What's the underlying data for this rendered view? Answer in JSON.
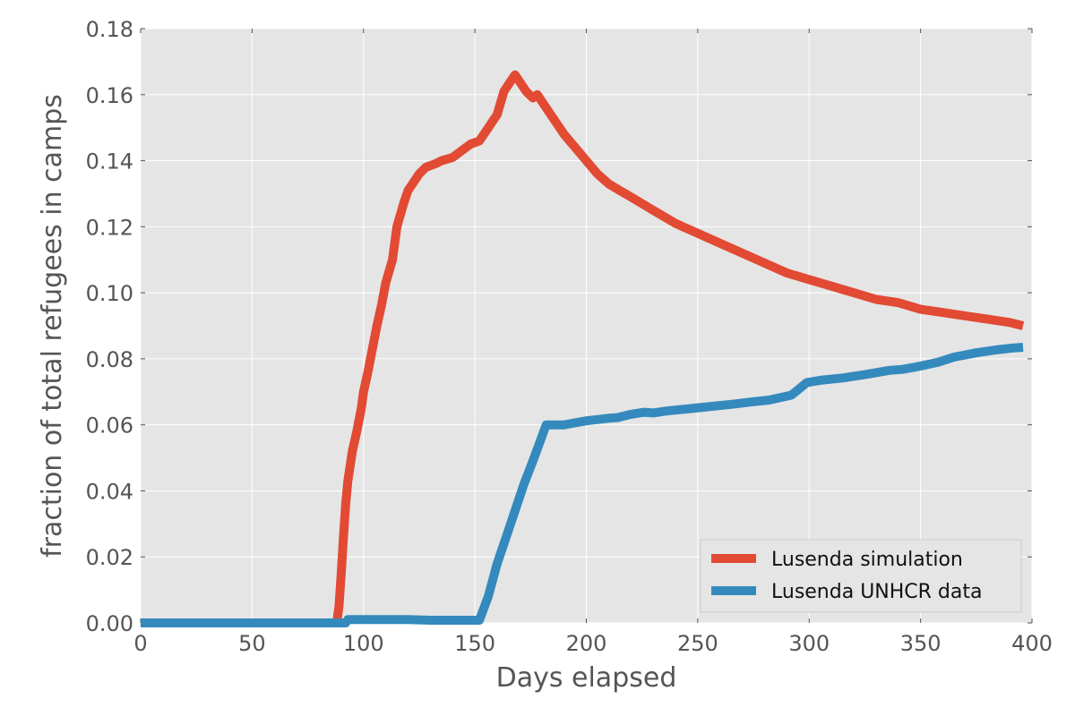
{
  "chart_data": {
    "type": "line",
    "title": "",
    "xlabel": "Days elapsed",
    "ylabel": "fraction of total refugees in camps",
    "xlim": [
      0,
      400
    ],
    "ylim": [
      0,
      0.18
    ],
    "x_ticks": [
      0,
      50,
      100,
      150,
      200,
      250,
      300,
      350,
      400
    ],
    "x_tick_labels": [
      "0",
      "50",
      "100",
      "150",
      "200",
      "250",
      "300",
      "350",
      "400"
    ],
    "y_ticks": [
      0,
      0.02,
      0.04,
      0.06,
      0.08,
      0.1,
      0.12,
      0.14,
      0.16,
      0.18
    ],
    "y_tick_labels": [
      "0.00",
      "0.02",
      "0.04",
      "0.06",
      "0.08",
      "0.10",
      "0.12",
      "0.14",
      "0.16",
      "0.18"
    ],
    "grid": true,
    "legend_position": "bottom-right",
    "background": "#e5e5e5",
    "series": [
      {
        "name": "Lusenda simulation",
        "color": "#e24a33",
        "points": [
          [
            0,
            0
          ],
          [
            50,
            0
          ],
          [
            88,
            0
          ],
          [
            89,
            0.005
          ],
          [
            90,
            0.015
          ],
          [
            91,
            0.026
          ],
          [
            92,
            0.036
          ],
          [
            93,
            0.043
          ],
          [
            95,
            0.052
          ],
          [
            97,
            0.058
          ],
          [
            99,
            0.065
          ],
          [
            100,
            0.07
          ],
          [
            102,
            0.076
          ],
          [
            104,
            0.083
          ],
          [
            106,
            0.09
          ],
          [
            108,
            0.096
          ],
          [
            110,
            0.103
          ],
          [
            113,
            0.11
          ],
          [
            115,
            0.12
          ],
          [
            118,
            0.127
          ],
          [
            120,
            0.131
          ],
          [
            123,
            0.134
          ],
          [
            125,
            0.136
          ],
          [
            128,
            0.138
          ],
          [
            132,
            0.139
          ],
          [
            135,
            0.14
          ],
          [
            140,
            0.141
          ],
          [
            144,
            0.143
          ],
          [
            148,
            0.145
          ],
          [
            152,
            0.146
          ],
          [
            155,
            0.149
          ],
          [
            160,
            0.154
          ],
          [
            163,
            0.161
          ],
          [
            166,
            0.164
          ],
          [
            168,
            0.166
          ],
          [
            170,
            0.164
          ],
          [
            173,
            0.161
          ],
          [
            176,
            0.159
          ],
          [
            178,
            0.16
          ],
          [
            182,
            0.156
          ],
          [
            187,
            0.151
          ],
          [
            190,
            0.148
          ],
          [
            195,
            0.144
          ],
          [
            200,
            0.14
          ],
          [
            205,
            0.136
          ],
          [
            210,
            0.133
          ],
          [
            215,
            0.131
          ],
          [
            220,
            0.129
          ],
          [
            225,
            0.127
          ],
          [
            230,
            0.125
          ],
          [
            240,
            0.121
          ],
          [
            250,
            0.118
          ],
          [
            260,
            0.115
          ],
          [
            270,
            0.112
          ],
          [
            280,
            0.109
          ],
          [
            290,
            0.106
          ],
          [
            300,
            0.104
          ],
          [
            310,
            0.102
          ],
          [
            320,
            0.1
          ],
          [
            330,
            0.098
          ],
          [
            340,
            0.097
          ],
          [
            350,
            0.095
          ],
          [
            360,
            0.094
          ],
          [
            370,
            0.093
          ],
          [
            380,
            0.092
          ],
          [
            390,
            0.091
          ],
          [
            396,
            0.09
          ]
        ]
      },
      {
        "name": "Lusenda UNHCR data",
        "color": "#348abd",
        "points": [
          [
            0,
            0
          ],
          [
            50,
            0
          ],
          [
            92,
            0
          ],
          [
            93,
            0.001
          ],
          [
            100,
            0.001
          ],
          [
            110,
            0.001
          ],
          [
            120,
            0.001
          ],
          [
            130,
            0.0008
          ],
          [
            140,
            0.0008
          ],
          [
            152,
            0.0008
          ],
          [
            156,
            0.008
          ],
          [
            160,
            0.018
          ],
          [
            164,
            0.026
          ],
          [
            168,
            0.034
          ],
          [
            172,
            0.042
          ],
          [
            176,
            0.049
          ],
          [
            182,
            0.06
          ],
          [
            190,
            0.06
          ],
          [
            200,
            0.0612
          ],
          [
            210,
            0.062
          ],
          [
            214,
            0.0622
          ],
          [
            220,
            0.0632
          ],
          [
            226,
            0.0638
          ],
          [
            230,
            0.0636
          ],
          [
            236,
            0.0642
          ],
          [
            245,
            0.0648
          ],
          [
            255,
            0.0655
          ],
          [
            265,
            0.0662
          ],
          [
            275,
            0.067
          ],
          [
            282,
            0.0675
          ],
          [
            292,
            0.069
          ],
          [
            299,
            0.0728
          ],
          [
            305,
            0.0735
          ],
          [
            315,
            0.0742
          ],
          [
            325,
            0.0752
          ],
          [
            336,
            0.0765
          ],
          [
            342,
            0.0768
          ],
          [
            350,
            0.0778
          ],
          [
            358,
            0.079
          ],
          [
            365,
            0.0805
          ],
          [
            375,
            0.0818
          ],
          [
            385,
            0.0828
          ],
          [
            392,
            0.0833
          ],
          [
            396,
            0.0835
          ]
        ]
      }
    ]
  }
}
